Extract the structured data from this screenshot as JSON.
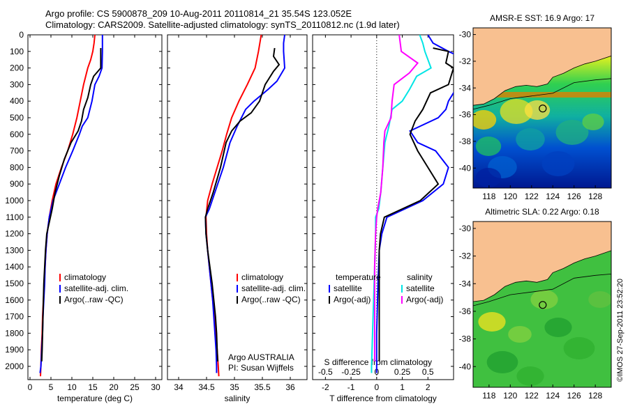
{
  "header": {
    "line1": "Argo profile: CS 5900878_209 10-Aug-2011 20110814_21 35.54S 123.052E",
    "line2": "Climatology: CARS2009. Satellite-adjusted climatology: synTS_20110812.nc (1.9d later)"
  },
  "colors": {
    "climatology": "#ff0000",
    "satellite": "#0000ff",
    "argo": "#000000",
    "sat_sal": "#00e5e5",
    "argo_sal": "#ff00ff"
  },
  "chart_data": [
    {
      "id": "temperature",
      "type": "line",
      "xlabel": "temperature (deg C)",
      "ylabel": "",
      "xlim": [
        -0.5,
        31.5
      ],
      "ylim": [
        2080,
        0
      ],
      "xticks": [
        0,
        5,
        10,
        15,
        20,
        25,
        30
      ],
      "yticks": [
        0,
        100,
        200,
        300,
        400,
        500,
        600,
        700,
        800,
        900,
        1000,
        1100,
        1200,
        1300,
        1400,
        1500,
        1600,
        1700,
        1800,
        1900,
        2000
      ],
      "legend": [
        "climatology",
        "satellite-adj. clim.",
        "Argo(..raw -QC)"
      ],
      "series": [
        {
          "name": "climatology",
          "color": "#ff0000",
          "points": [
            [
              15.5,
              0
            ],
            [
              15.3,
              50
            ],
            [
              15.0,
              100
            ],
            [
              14.5,
              150
            ],
            [
              13.8,
              200
            ],
            [
              12.8,
              300
            ],
            [
              12.0,
              400
            ],
            [
              11.2,
              500
            ],
            [
              10.2,
              600
            ],
            [
              9.0,
              700
            ],
            [
              7.5,
              800
            ],
            [
              6.2,
              900
            ],
            [
              5.3,
              1000
            ],
            [
              4.6,
              1100
            ],
            [
              4.1,
              1200
            ],
            [
              3.8,
              1300
            ],
            [
              3.6,
              1400
            ],
            [
              3.4,
              1500
            ],
            [
              3.2,
              1600
            ],
            [
              3.0,
              1700
            ],
            [
              2.9,
              1800
            ],
            [
              2.7,
              1900
            ],
            [
              2.6,
              2000
            ],
            [
              2.5,
              2060
            ]
          ]
        },
        {
          "name": "satellite-adj. clim.",
          "color": "#0000ff",
          "points": [
            [
              17.3,
              0
            ],
            [
              17.3,
              100
            ],
            [
              17.2,
              200
            ],
            [
              16.5,
              250
            ],
            [
              15.5,
              300
            ],
            [
              14.8,
              400
            ],
            [
              13.8,
              500
            ],
            [
              12.5,
              550
            ],
            [
              11.8,
              600
            ],
            [
              10.2,
              700
            ],
            [
              8.5,
              800
            ],
            [
              7.0,
              900
            ],
            [
              5.5,
              1000
            ],
            [
              4.6,
              1100
            ],
            [
              4.1,
              1200
            ],
            [
              3.8,
              1300
            ],
            [
              3.6,
              1400
            ],
            [
              3.5,
              1500
            ],
            [
              3.3,
              1600
            ],
            [
              3.1,
              1700
            ],
            [
              3.0,
              1800
            ],
            [
              2.8,
              1900
            ],
            [
              2.6,
              2000
            ],
            [
              2.4,
              2040
            ]
          ]
        },
        {
          "name": "Argo(..raw -QC)",
          "color": "#000000",
          "points": [
            [
              16.9,
              80
            ],
            [
              16.9,
              170
            ],
            [
              16.9,
              200
            ],
            [
              15.2,
              250
            ],
            [
              14.5,
              300
            ],
            [
              13.8,
              380
            ],
            [
              12.8,
              450
            ],
            [
              12.3,
              520
            ],
            [
              11.5,
              580
            ],
            [
              9.8,
              650
            ],
            [
              8.2,
              750
            ],
            [
              7.0,
              850
            ],
            [
              6.0,
              950
            ],
            [
              5.3,
              1050
            ],
            [
              4.7,
              1120
            ],
            [
              4.0,
              1200
            ],
            [
              3.7,
              1300
            ],
            [
              3.5,
              1400
            ],
            [
              3.3,
              1500
            ],
            [
              3.2,
              1600
            ],
            [
              3.1,
              1700
            ],
            [
              3.0,
              1800
            ],
            [
              2.9,
              1900
            ],
            [
              2.8,
              1970
            ]
          ]
        }
      ]
    },
    {
      "id": "salinity",
      "type": "line",
      "xlabel": "salinity",
      "ylabel": "",
      "xlim": [
        33.8,
        36.3
      ],
      "ylim": [
        2080,
        0
      ],
      "xticks": [
        34,
        34.5,
        35,
        35.5,
        36
      ],
      "legend": [
        "climatology",
        "satellite-adj. clim.",
        "Argo(..raw -QC)"
      ],
      "annotation": [
        "Argo AUSTRALIA",
        "PI: Susan Wijffels"
      ],
      "series": [
        {
          "name": "climatology",
          "color": "#ff0000",
          "points": [
            [
              35.48,
              0
            ],
            [
              35.43,
              100
            ],
            [
              35.37,
              200
            ],
            [
              35.23,
              300
            ],
            [
              35.08,
              400
            ],
            [
              34.95,
              500
            ],
            [
              34.86,
              600
            ],
            [
              34.78,
              700
            ],
            [
              34.69,
              800
            ],
            [
              34.6,
              900
            ],
            [
              34.52,
              1000
            ],
            [
              34.49,
              1100
            ],
            [
              34.5,
              1200
            ],
            [
              34.52,
              1300
            ],
            [
              34.55,
              1400
            ],
            [
              34.58,
              1500
            ],
            [
              34.61,
              1600
            ],
            [
              34.64,
              1700
            ],
            [
              34.67,
              1800
            ],
            [
              34.69,
              1900
            ],
            [
              34.71,
              2000
            ],
            [
              34.72,
              2060
            ]
          ]
        },
        {
          "name": "satellite-adj. clim.",
          "color": "#0000ff",
          "points": [
            [
              35.9,
              0
            ],
            [
              35.88,
              50
            ],
            [
              35.88,
              100
            ],
            [
              35.9,
              200
            ],
            [
              35.76,
              280
            ],
            [
              35.6,
              330
            ],
            [
              35.35,
              400
            ],
            [
              35.2,
              450
            ],
            [
              35.05,
              550
            ],
            [
              34.92,
              650
            ],
            [
              34.8,
              800
            ],
            [
              34.65,
              950
            ],
            [
              34.55,
              1050
            ],
            [
              34.48,
              1100
            ],
            [
              34.49,
              1200
            ],
            [
              34.52,
              1300
            ],
            [
              34.55,
              1400
            ],
            [
              34.58,
              1500
            ],
            [
              34.61,
              1600
            ],
            [
              34.63,
              1700
            ],
            [
              34.65,
              1800
            ],
            [
              34.67,
              1900
            ],
            [
              34.68,
              2000
            ],
            [
              34.68,
              2040
            ]
          ]
        },
        {
          "name": "Argo(..raw -QC)",
          "color": "#000000",
          "points": [
            [
              35.72,
              80
            ],
            [
              35.7,
              130
            ],
            [
              35.8,
              180
            ],
            [
              35.7,
              220
            ],
            [
              35.55,
              300
            ],
            [
              35.5,
              350
            ],
            [
              35.45,
              400
            ],
            [
              35.3,
              470
            ],
            [
              35.1,
              520
            ],
            [
              34.95,
              580
            ],
            [
              34.85,
              650
            ],
            [
              34.75,
              800
            ],
            [
              34.62,
              950
            ],
            [
              34.52,
              1050
            ],
            [
              34.48,
              1100
            ],
            [
              34.49,
              1200
            ],
            [
              34.52,
              1300
            ],
            [
              34.56,
              1400
            ],
            [
              34.6,
              1500
            ],
            [
              34.63,
              1600
            ],
            [
              34.66,
              1700
            ],
            [
              34.68,
              1800
            ],
            [
              34.69,
              1900
            ],
            [
              34.7,
              1970
            ]
          ]
        }
      ]
    },
    {
      "id": "difference",
      "type": "line",
      "xlabel": "T difference from climatology",
      "x2label": "S difference from climatology",
      "ylabel": "",
      "xlim": [
        -2.5,
        3.0
      ],
      "x2lim": [
        -0.625,
        0.75
      ],
      "ylim": [
        2080,
        0
      ],
      "xticks": [
        -2,
        -1,
        0,
        1,
        2
      ],
      "x2ticks": [
        -0.5,
        -0.25,
        0,
        0.25,
        0.5
      ],
      "x2ticklabels": [
        "-0.5",
        "-0.25",
        "0",
        "0.25",
        "0.5"
      ],
      "legend_temperature_title": "temperature",
      "legend_salinity_title": "salinity",
      "legend": [
        "satellite",
        "Argo(-adj)",
        "satellite",
        "Argo(-adj)"
      ],
      "series": [
        {
          "name": "satellite",
          "quantity": "temperature",
          "color": "#0000ff",
          "points": [
            [
              2.0,
              0
            ],
            [
              2.2,
              50
            ],
            [
              2.8,
              100
            ],
            [
              3.5,
              150
            ],
            [
              3.3,
              200
            ],
            [
              3.2,
              300
            ],
            [
              2.8,
              400
            ],
            [
              2.7,
              450
            ],
            [
              2.4,
              500
            ],
            [
              1.3,
              580
            ],
            [
              1.6,
              650
            ],
            [
              2.3,
              700
            ],
            [
              2.8,
              800
            ],
            [
              2.6,
              900
            ],
            [
              1.8,
              1000
            ],
            [
              0.4,
              1100
            ],
            [
              0.2,
              1200
            ],
            [
              0.1,
              1300
            ],
            [
              0.05,
              1500
            ],
            [
              0.0,
              1800
            ],
            [
              0.0,
              2000
            ],
            [
              0.0,
              2040
            ]
          ]
        },
        {
          "name": "Argo(-adj)",
          "quantity": "temperature",
          "color": "#000000",
          "points": [
            [
              2.2,
              80
            ],
            [
              2.8,
              100
            ],
            [
              2.7,
              170
            ],
            [
              3.0,
              200
            ],
            [
              2.8,
              300
            ],
            [
              2.1,
              350
            ],
            [
              1.8,
              450
            ],
            [
              1.5,
              520
            ],
            [
              1.3,
              600
            ],
            [
              1.6,
              700
            ],
            [
              2.0,
              800
            ],
            [
              2.4,
              900
            ],
            [
              1.7,
              1000
            ],
            [
              0.3,
              1100
            ],
            [
              0.15,
              1200
            ],
            [
              0.1,
              1300
            ],
            [
              0.1,
              1500
            ],
            [
              0.1,
              1700
            ],
            [
              0.1,
              1900
            ],
            [
              0.1,
              1970
            ]
          ]
        },
        {
          "name": "satellite",
          "quantity": "salinity",
          "color": "#00e5e5",
          "points": [
            [
              0.42,
              0
            ],
            [
              0.45,
              50
            ],
            [
              0.47,
              100
            ],
            [
              0.53,
              200
            ],
            [
              0.39,
              250
            ],
            [
              0.32,
              330
            ],
            [
              0.25,
              400
            ],
            [
              0.15,
              450
            ],
            [
              0.12,
              550
            ],
            [
              0.08,
              650
            ],
            [
              0.06,
              800
            ],
            [
              0.04,
              950
            ],
            [
              0.02,
              1050
            ],
            [
              -0.01,
              1100
            ],
            [
              -0.01,
              1200
            ],
            [
              -0.02,
              1400
            ],
            [
              -0.03,
              1600
            ],
            [
              -0.04,
              1800
            ],
            [
              -0.05,
              2000
            ],
            [
              -0.05,
              2040
            ]
          ]
        },
        {
          "name": "Argo(-adj)",
          "quantity": "salinity",
          "color": "#ff00ff",
          "points": [
            [
              0.22,
              0
            ],
            [
              0.24,
              100
            ],
            [
              0.4,
              170
            ],
            [
              0.32,
              230
            ],
            [
              0.17,
              300
            ],
            [
              0.15,
              400
            ],
            [
              0.14,
              500
            ],
            [
              0.08,
              580
            ],
            [
              0.07,
              650
            ],
            [
              0.06,
              800
            ],
            [
              0.04,
              950
            ],
            [
              0.01,
              1050
            ],
            [
              0.0,
              1100
            ],
            [
              -0.01,
              1200
            ],
            [
              -0.02,
              1400
            ],
            [
              -0.02,
              1600
            ],
            [
              -0.02,
              1800
            ],
            [
              -0.02,
              1970
            ]
          ]
        }
      ]
    },
    {
      "id": "sst_map",
      "type": "heatmap",
      "title": "AMSR-E SST: 16.9 Argo: 17",
      "xlim": [
        116.5,
        129.5
      ],
      "ylim": [
        -41.5,
        -29.5
      ],
      "xticks": [
        118,
        120,
        122,
        124,
        126,
        128
      ],
      "yticks": [
        -30,
        -32,
        -34,
        -36,
        -38,
        -40
      ],
      "marker": {
        "lon": 123.052,
        "lat": -35.54
      }
    },
    {
      "id": "sla_map",
      "type": "heatmap",
      "title": "Altimetric SLA: 0.22 Argo: 0.18",
      "xlim": [
        116.5,
        129.5
      ],
      "ylim": [
        -41.5,
        -29.5
      ],
      "xticks": [
        118,
        120,
        122,
        124,
        126,
        128
      ],
      "yticks": [
        -30,
        -32,
        -34,
        -36,
        -38,
        -40
      ],
      "marker": {
        "lon": 123.052,
        "lat": -35.54
      }
    }
  ],
  "footer_stamp": "©IMOS 27-Sep-2011 23:52:20"
}
